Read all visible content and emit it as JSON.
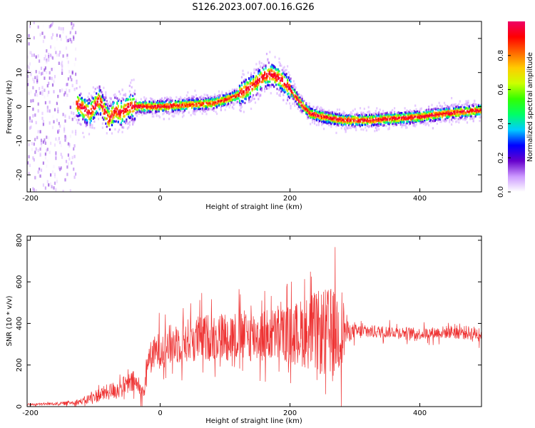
{
  "title": "S126.2023.007.00.16.G26",
  "chart_data": [
    {
      "type": "heatmap",
      "xlabel": "Height of straight line (km)",
      "ylabel": "Frequency (Hz)",
      "xlim": [
        -205,
        495
      ],
      "ylim": [
        -25,
        25
      ],
      "xticks": [
        -200,
        0,
        200,
        400
      ],
      "yticks": [
        -20,
        -10,
        0,
        10,
        20
      ],
      "colorbar": {
        "label": "Normalized spectral amplitude",
        "ticks": [
          "0.0",
          "0.2",
          "0.4",
          "0.6",
          "0.8"
        ],
        "colors": [
          "#ffffff",
          "#cc99ff",
          "#6600cc",
          "#0000ff",
          "#00ccff",
          "#00ff66",
          "#33ff00",
          "#ccff00",
          "#ffcc00",
          "#ff6600",
          "#ff0000",
          "#ee0066"
        ]
      },
      "ridge": {
        "x": [
          -150,
          -130,
          -110,
          -95,
          -80,
          -70,
          -60,
          -50,
          -30,
          0,
          40,
          80,
          100,
          120,
          140,
          160,
          170,
          185,
          200,
          215,
          230,
          250,
          280,
          320,
          360,
          400,
          440,
          495
        ],
        "y": [
          3,
          1,
          -2,
          2,
          -4,
          -1,
          -2,
          0,
          0,
          0,
          0.5,
          1,
          2,
          3.5,
          6,
          9,
          9.5,
          8,
          5,
          1,
          -2,
          -3,
          -4,
          -4,
          -3.5,
          -3,
          -2,
          -1
        ]
      },
      "grid": false
    },
    {
      "type": "line",
      "xlabel": "Height of straight line (km)",
      "ylabel": "SNR (10 * v/v)",
      "xlim": [
        -205,
        495
      ],
      "ylim": [
        0,
        820
      ],
      "xticks": [
        -200,
        0,
        200,
        400
      ],
      "yticks": [
        0,
        200,
        400,
        600,
        800
      ],
      "color": "#ee3333",
      "envelope": {
        "x": [
          -205,
          -150,
          -120,
          -100,
          -80,
          -60,
          -40,
          -25,
          -20,
          0,
          30,
          60,
          100,
          150,
          200,
          230,
          260,
          280,
          290,
          320,
          360,
          400,
          450,
          495
        ],
        "mean": [
          10,
          15,
          25,
          50,
          70,
          90,
          120,
          60,
          220,
          280,
          310,
          330,
          340,
          340,
          350,
          360,
          350,
          370,
          360,
          360,
          360,
          350,
          360,
          350
        ],
        "spread": [
          5,
          10,
          20,
          40,
          50,
          60,
          70,
          40,
          90,
          120,
          130,
          140,
          150,
          160,
          170,
          230,
          280,
          250,
          50,
          40,
          35,
          35,
          40,
          45
        ]
      },
      "grid": false
    }
  ]
}
